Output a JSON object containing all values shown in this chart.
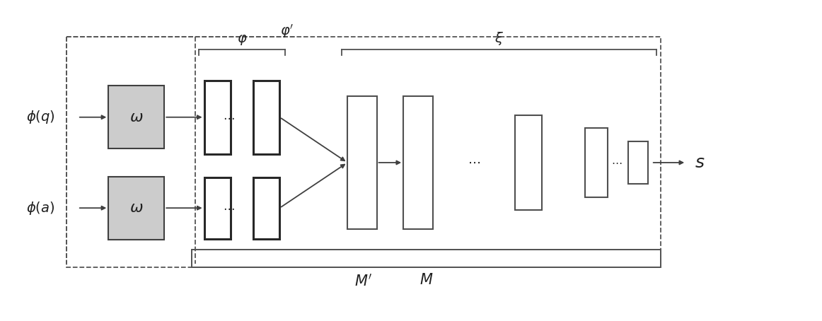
{
  "bg_color": "#ffffff",
  "omega_box_color": "#cccccc",
  "line_color": "#404040",
  "dashed_color": "#555555",
  "text_color": "#202020",
  "phi_q_label": "$\\phi(q)$",
  "phi_a_label": "$\\phi(a)$",
  "omega_label": "$\\omega$",
  "phi_label": "$\\varphi$",
  "phi_prime_label": "$\\varphi'$",
  "xi_label": "$\\xi$",
  "M_label": "$M$",
  "M_prime_label": "$M'$",
  "s_label": "$s$",
  "dots": "$\\cdots$",
  "figsize": [
    11.62,
    4.54
  ],
  "dpi": 100
}
